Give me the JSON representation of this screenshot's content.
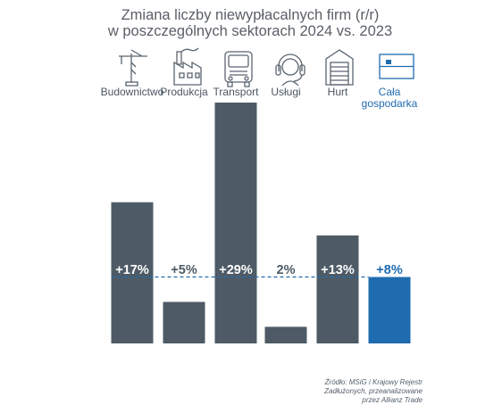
{
  "chart_data": {
    "type": "bar",
    "title": "Zmiana liczby niewypłacalnych firm (r/r)",
    "subtitle": "w poszczególnych sektorach 2024 vs. 2023",
    "categories": [
      "Budownictwo",
      "Produkcja",
      "Transport",
      "Usługi",
      "Hurt",
      "Cała gospodarka"
    ],
    "category_lines": [
      [
        "Budownictwo"
      ],
      [
        "Produkcja"
      ],
      [
        "Transport"
      ],
      [
        "Usługi"
      ],
      [
        "Hurt"
      ],
      [
        "Cała",
        "gospodarka"
      ]
    ],
    "values": [
      17,
      5,
      29,
      2,
      13,
      8
    ],
    "labels": [
      "+17%",
      "+5%",
      "+29%",
      "2%",
      "+13%",
      "+8%"
    ],
    "reference_line": {
      "value": 8,
      "style": "dashed"
    },
    "icons": [
      "crane-icon",
      "factory-icon",
      "truck-icon",
      "headset-icon",
      "warehouse-icon",
      "flag-icon"
    ],
    "ylim": [
      0,
      29
    ],
    "grid": false,
    "colors": {
      "bar": "#4e5b66",
      "highlight": "#1f6bb0",
      "text": "#5a5f66"
    },
    "highlight_index": 5
  },
  "source_lines": [
    "Źródło: MSiG i Krajowy Rejestr",
    "Zadłużonych, przeanalizowane",
    "przez Allianz Trade"
  ]
}
